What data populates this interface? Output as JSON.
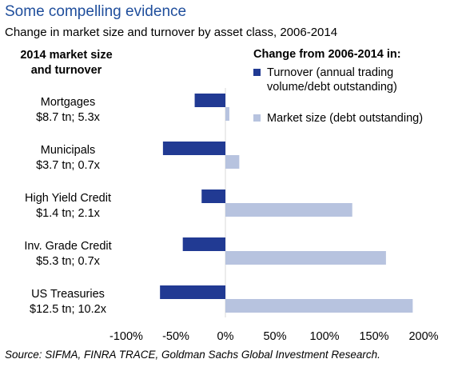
{
  "header": {
    "title": "Some compelling evidence",
    "subtitle": "Change in market size and turnover by asset class, 2006-2014"
  },
  "left_header": [
    "2014 market size",
    "and turnover"
  ],
  "source": "Source: SIFMA, FINRA TRACE, Goldman Sachs Global Investment Research.",
  "colors": {
    "turnover": "#213a93",
    "market_size": "#b7c3df",
    "title": "#1f4e9c"
  },
  "chart_data": {
    "type": "bar",
    "orientation": "horizontal",
    "legend_title": "Change from 2006-2014 in:",
    "categories": [
      {
        "name": "Mortgages",
        "detail": "$8.7 tn; 5.3x"
      },
      {
        "name": "Municipals",
        "detail": "$3.7 tn; 0.7x"
      },
      {
        "name": "High Yield Credit",
        "detail": "$1.4 tn; 2.1x"
      },
      {
        "name": "Inv. Grade Credit",
        "detail": "$5.3 tn; 0.7x"
      },
      {
        "name": "US Treasuries",
        "detail": "$12.5 tn; 10.2x"
      }
    ],
    "series": [
      {
        "name": "Turnover (annual trading volume/debt outstanding)",
        "values": [
          -31,
          -63,
          -24,
          -43,
          -66
        ]
      },
      {
        "name": "Market size (debt outstanding)",
        "values": [
          4,
          14,
          128,
          162,
          189
        ]
      }
    ],
    "xlim": [
      -100,
      200
    ],
    "x_ticks": [
      -100,
      -50,
      0,
      50,
      100,
      150,
      200
    ],
    "x_tick_labels": [
      "-100%",
      "-50%",
      "0%",
      "50%",
      "100%",
      "150%",
      "200%"
    ],
    "legend_position": "top-right"
  }
}
